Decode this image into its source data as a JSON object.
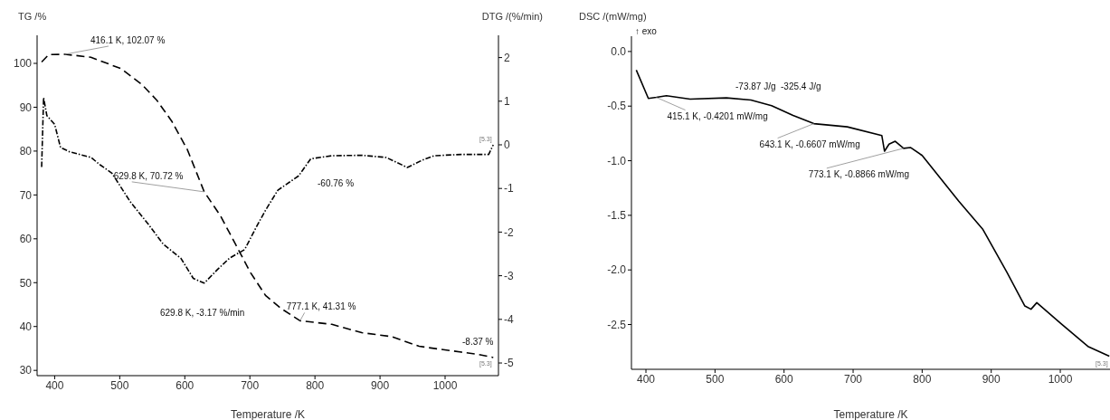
{
  "chart_data": [
    {
      "type": "line",
      "ylabel": "TG /%",
      "y2label": "DTG /(%/min)",
      "xlabel": "Temperature /K",
      "xlim": [
        373,
        1082
      ],
      "xticks": [
        400,
        500,
        600,
        700,
        800,
        900,
        1000
      ],
      "ylim": [
        28.8,
        106.4
      ],
      "yticks": [
        30,
        40,
        50,
        60,
        70,
        80,
        90,
        100
      ],
      "y2lim": [
        -5.29,
        2.51
      ],
      "y2ticks": [
        -5,
        -4,
        -3,
        -2,
        -1,
        0,
        1,
        2
      ],
      "grid": false,
      "legend": false,
      "marker": "none",
      "series": [
        {
          "color": "#000000",
          "line_style": "dashed",
          "x": [
            380,
            391,
            416.1,
            455.6,
            502,
            534,
            557,
            580,
            604,
            629.8,
            654.6,
            677.8,
            700.9,
            724,
            747,
            777.1,
            826,
            872,
            918,
            960,
            993,
            1049,
            1074
          ],
          "values": [
            100.3,
            102.0,
            102.07,
            101.4,
            98.8,
            95.2,
            91.6,
            86.8,
            80.3,
            70.72,
            65.3,
            58.8,
            52.3,
            47.1,
            44.2,
            41.31,
            40.5,
            38.6,
            37.7,
            35.5,
            34.8,
            33.7,
            32.94
          ]
        },
        {
          "color": "#000000",
          "line_style": "dotted",
          "axis": "y2",
          "x": [
            380,
            383,
            388,
            400,
            409,
            423,
            456,
            469,
            488,
            516,
            544,
            567,
            594,
            613,
            629.8,
            650,
            668.5,
            692,
            710,
            724,
            743,
            775,
            793.5,
            826,
            872,
            909.7,
            942,
            965,
            983,
            1025,
            1067,
            1074
          ],
          "values": [
            -0.51,
            1.08,
            0.67,
            0.47,
            -0.06,
            -0.16,
            -0.29,
            -0.45,
            -0.65,
            -1.3,
            -1.82,
            -2.28,
            -2.6,
            -3.06,
            -3.17,
            -2.86,
            -2.6,
            -2.4,
            -1.88,
            -1.5,
            -1.04,
            -0.71,
            -0.32,
            -0.25,
            -0.24,
            -0.29,
            -0.52,
            -0.35,
            -0.25,
            -0.22,
            -0.22,
            0.0
          ]
        }
      ],
      "annotations": [
        {
          "text": "416.1 K, 102.07 %",
          "x": 416.1,
          "y": 102.07
        },
        {
          "text": "629.8 K, 70.72 %",
          "x": 629.8,
          "y": 70.72
        },
        "629.8 K, -3.17 %/min",
        {
          "text": "777.1 K, 41.31 %",
          "x": 777.1,
          "y": 41.31
        },
        "-60.76 %",
        "-8.37 %",
        "[5.3]",
        "[5.3]"
      ]
    },
    {
      "type": "line",
      "ylabel": "DSC /(mW/mg)",
      "xlabel": "Temperature /K",
      "xlim": [
        379,
        1072
      ],
      "xticks": [
        400,
        500,
        600,
        700,
        800,
        900,
        1000
      ],
      "ylim": [
        -2.91,
        0.14
      ],
      "yticks": [
        {
          "value": 0,
          "label": "0.0"
        },
        -0.5,
        {
          "value": -1,
          "label": "-1.0"
        },
        -1.5,
        {
          "value": -2,
          "label": "-2.0"
        },
        -2.5
      ],
      "grid": false,
      "legend": false,
      "marker": "none",
      "series": [
        {
          "color": "#000000",
          "line_style": "solid",
          "x": [
            386,
            403.5,
            415.1,
            429.7,
            464,
            516.5,
            552,
            582,
            613,
            643.1,
            691.5,
            741.6,
            745.5,
            752,
            761,
            773.1,
            783,
            800,
            853,
            888,
            922.6,
            948.7,
            957.6,
            966,
            1000.8,
            1040,
            1071
          ],
          "values": [
            -0.17,
            -0.43,
            -0.4201,
            -0.405,
            -0.436,
            -0.425,
            -0.444,
            -0.496,
            -0.585,
            -0.6607,
            -0.69,
            -0.77,
            -0.913,
            -0.848,
            -0.822,
            -0.8866,
            -0.879,
            -0.952,
            -1.37,
            -1.63,
            -2.02,
            -2.33,
            -2.36,
            -2.3,
            -2.49,
            -2.7,
            -2.79
          ]
        }
      ],
      "annotations": [
        {
          "text": "415.1 K, -0.4201 mW/mg",
          "x": 415.1,
          "y": -0.4201
        },
        {
          "text": "643.1 K, -0.6607 mW/mg",
          "x": 643.1,
          "y": -0.6607
        },
        {
          "text": "773.1 K, -0.8866 mW/mg",
          "x": 773.1,
          "y": -0.8866
        },
        "-73.87 J/g",
        "-325.4 J/g",
        "[5.3]",
        "↑ exo"
      ]
    }
  ]
}
